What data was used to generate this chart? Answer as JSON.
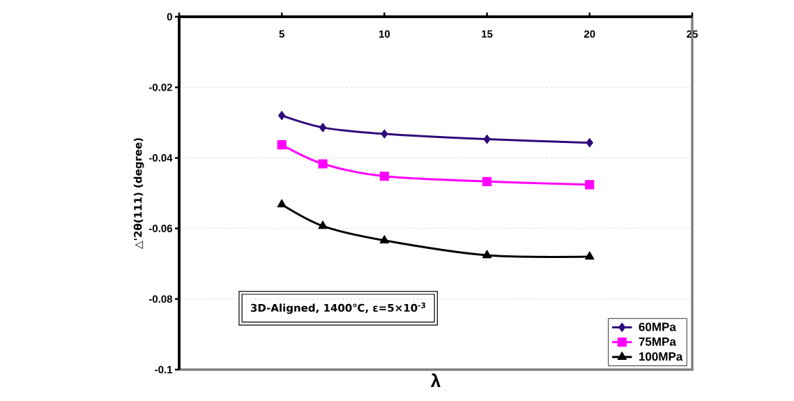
{
  "chart_data": {
    "type": "line",
    "xlabel": "λ",
    "ylabel": "△'2θ(111) (degree)",
    "x": [
      5,
      7,
      10,
      15,
      20
    ],
    "series": [
      {
        "name": "60MPa",
        "color": "#2e0a7a",
        "marker": "diamond",
        "values": [
          -0.028,
          -0.0314,
          -0.0332,
          -0.0347,
          -0.0357
        ]
      },
      {
        "name": "75MPa",
        "color": "#ff00ff",
        "marker": "square",
        "values": [
          -0.0363,
          -0.0417,
          -0.0452,
          -0.0467,
          -0.0476
        ]
      },
      {
        "name": "100MPa",
        "color": "#000000",
        "marker": "triangle",
        "values": [
          -0.0532,
          -0.0593,
          -0.0634,
          -0.0676,
          -0.068
        ]
      }
    ],
    "xlim": [
      0,
      25
    ],
    "xticks": [
      {
        "value": 0,
        "label": null
      },
      5,
      10,
      15,
      20,
      25
    ],
    "ylim": [
      -0.1,
      0
    ],
    "yticks": [
      0,
      -0.02,
      -0.04,
      -0.06,
      -0.08,
      -0.1
    ],
    "grid": "y",
    "legend": "bottom right",
    "line_style": "solid",
    "annotations": [
      "3D-Aligned, 1400℃, ε=5×10$^{-3}$"
    ]
  }
}
